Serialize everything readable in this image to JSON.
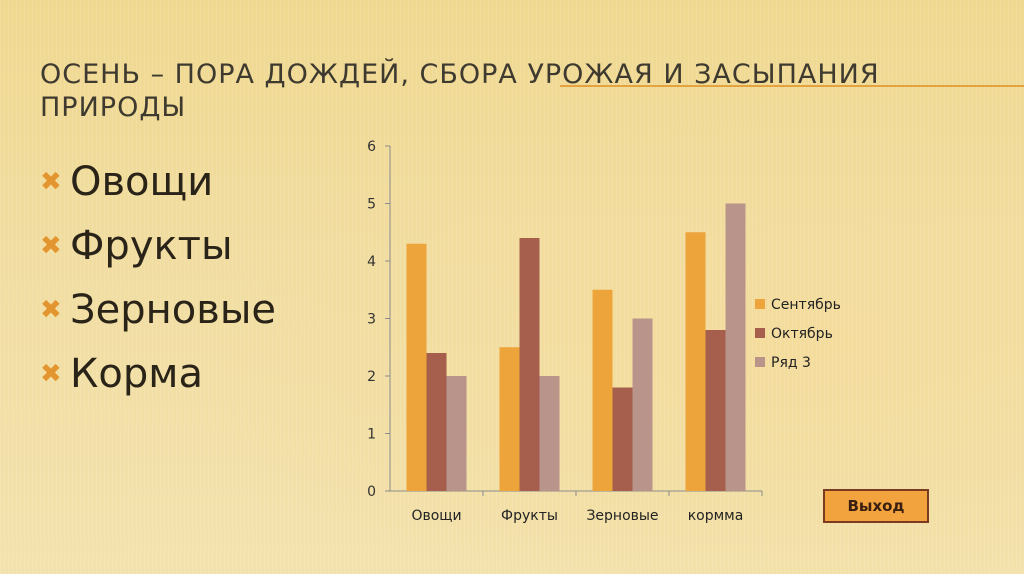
{
  "slide": {
    "title": "Осень – пора дождей, сбора урожая и засыпания природы",
    "bullets": [
      "Овощи",
      "Фрукты",
      "Зерновые",
      "Корма"
    ],
    "bullet_icon": "x-bullet-icon",
    "exit_button": "Выход"
  },
  "colors": {
    "accent": "#e3a43f",
    "button_fill": "#f2a33e",
    "button_border": "#7a3b22"
  },
  "chart_data": {
    "type": "bar",
    "categories": [
      "Овощи",
      "Фрукты",
      "Зерновые",
      "кормма"
    ],
    "series": [
      {
        "name": "Сентябрь",
        "values": [
          4.3,
          2.5,
          3.5,
          4.5
        ],
        "color": "#eca43b"
      },
      {
        "name": "Октябрь",
        "values": [
          2.4,
          4.4,
          1.8,
          2.8
        ],
        "color": "#a55f4c"
      },
      {
        "name": "Ряд 3",
        "values": [
          2,
          2,
          3,
          5
        ],
        "color": "#b8948a"
      }
    ],
    "yticks": [
      0,
      1,
      2,
      3,
      4,
      5,
      6
    ],
    "ylim": [
      0,
      6
    ],
    "grid": false,
    "legend": "right"
  }
}
